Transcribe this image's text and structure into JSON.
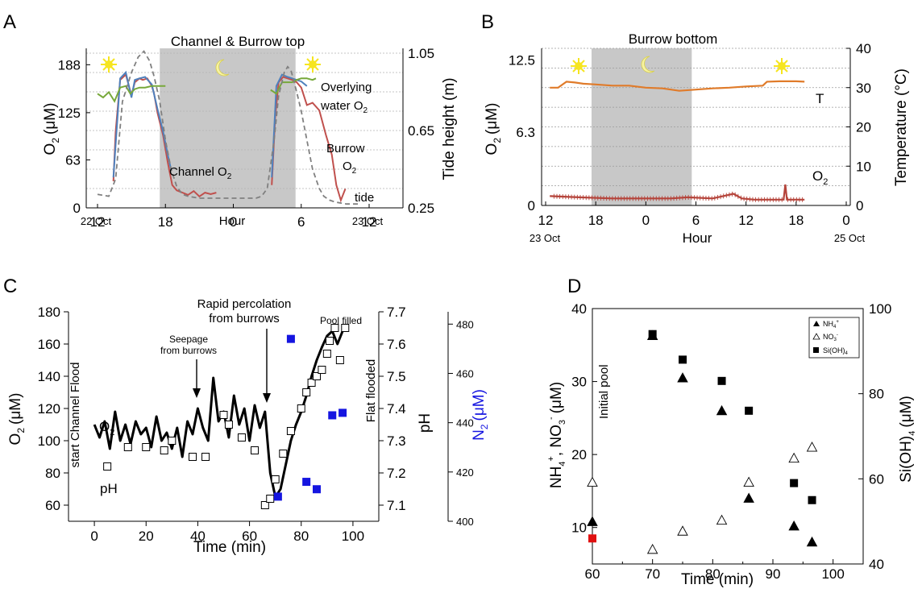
{
  "chart_data": [
    {
      "panel": "A",
      "type": "line",
      "title": "Channel & Burrow top",
      "x_ticks": [
        "12",
        "18",
        "0",
        "6",
        "12"
      ],
      "x_dates": {
        "start": "22 Oct",
        "end": "23 Oct"
      },
      "xlabel": "Hour",
      "ylabel_left": "O₂ (μM)",
      "ylabel_left_main": "O",
      "ylabel_left_sub": "2",
      "ylabel_left_unit": "(μM)",
      "ylim_left": [
        0,
        200
      ],
      "y_ticks_left": [
        "188",
        "125",
        "63",
        "0"
      ],
      "ylabel_right": "Tide height (m)",
      "ylim_right": [
        0.25,
        1.05
      ],
      "y_ticks_right": [
        "1.05",
        "0.65",
        "0.25"
      ],
      "night": {
        "start_hour": 17.5,
        "end_hour": 29.5
      },
      "annotations": {
        "overlying_1": "Overlying",
        "overlying_2": "water O",
        "overlying_sub": "2",
        "burrow_1": "Burrow",
        "burrow_2": "O",
        "burrow_sub": "2",
        "channel": "Channel O",
        "channel_sub": "2",
        "tide": "tide"
      },
      "series": [
        {
          "name": "Burrow O₂",
          "color": "#c0504d",
          "x": [
            13.4,
            13.6,
            14.0,
            14.5,
            15.0,
            15.3,
            15.7,
            16.0,
            16.4,
            16.8,
            17.0,
            17.3,
            17.8,
            18.2,
            18.6,
            19.0,
            19.5,
            20.0,
            20.5,
            21.0,
            21.5,
            22.0,
            22.5,
            27.4,
            27.7,
            28.0,
            28.4,
            28.8,
            29.2,
            29.6,
            30.0,
            30.5,
            31.0,
            31.6,
            32.2,
            32.7,
            33.1,
            33.5,
            33.9
          ],
          "y": [
            35,
            100,
            168,
            175,
            148,
            165,
            170,
            168,
            170,
            160,
            150,
            125,
            95,
            60,
            30,
            23,
            20,
            17,
            22,
            15,
            20,
            18,
            20,
            30,
            120,
            165,
            172,
            170,
            168,
            165,
            158,
            135,
            138,
            128,
            95,
            70,
            30,
            10,
            25
          ]
        },
        {
          "name": "Channel O₂",
          "color": "#4f81bd",
          "x": [
            13.4,
            14.0,
            14.5,
            15.0,
            15.3,
            15.7,
            16.2,
            16.8,
            17.3,
            17.8,
            18.2,
            18.5,
            27.4,
            27.8,
            28.3,
            28.8,
            29.2,
            29.6,
            30.0,
            30.5
          ],
          "y": [
            40,
            170,
            178,
            145,
            168,
            170,
            172,
            162,
            130,
            100,
            70,
            50,
            40,
            160,
            175,
            172,
            170,
            168,
            166,
            160
          ]
        },
        {
          "name": "Overlying water O₂",
          "color": "#77a83a",
          "x": [
            12.0,
            12.5,
            13.0,
            13.5,
            14.0,
            14.5,
            14.9,
            15.3,
            15.7,
            16.2,
            16.8,
            17.3,
            18.0,
            27.3,
            27.8,
            28.3,
            28.8,
            29.2,
            29.6,
            30.0,
            30.5,
            31.0,
            31.3
          ],
          "y": [
            150,
            145,
            152,
            140,
            158,
            160,
            150,
            156,
            158,
            158,
            160,
            160,
            160,
            155,
            150,
            165,
            165,
            165,
            168,
            170,
            170,
            168,
            170
          ]
        },
        {
          "name": "tide",
          "color": "#808080",
          "axis": "right",
          "x": [
            12.0,
            13.0,
            13.6,
            14.2,
            15.0,
            15.6,
            16.1,
            16.6,
            17.0,
            17.5,
            18.0,
            18.5,
            19.0,
            19.5,
            20.0,
            21.0,
            22.0,
            23.0,
            25.0,
            26.0,
            26.5,
            27.0,
            27.6,
            28.0,
            28.5,
            28.8,
            29.1,
            29.6,
            30.0,
            30.5,
            31.0,
            31.6,
            32.0,
            32.5,
            33.0,
            34.0,
            35.0
          ],
          "y": [
            0.32,
            0.31,
            0.4,
            0.8,
            0.95,
            1.03,
            1.06,
            1.01,
            0.93,
            0.8,
            0.6,
            0.45,
            0.36,
            0.32,
            0.31,
            0.3,
            0.3,
            0.3,
            0.3,
            0.3,
            0.31,
            0.35,
            0.6,
            0.83,
            0.95,
            0.98,
            0.96,
            0.85,
            0.75,
            0.6,
            0.45,
            0.35,
            0.31,
            0.29,
            0.28,
            0.27,
            0.27
          ]
        }
      ]
    },
    {
      "panel": "B",
      "type": "line",
      "title": "Burrow bottom",
      "x_ticks": [
        "12",
        "18",
        "0",
        "6",
        "12",
        "18",
        "0"
      ],
      "x_dates": {
        "start": "23 Oct",
        "end": "25 Oct"
      },
      "xlabel": "Hour",
      "ylabel_left": "O₂ (μM)",
      "ylabel_left_main": "O",
      "ylabel_left_sub": "2",
      "ylabel_left_unit": "(μM)",
      "ylim_left": [
        0,
        13.5
      ],
      "y_ticks_left": [
        "12.5",
        "6.3",
        "0"
      ],
      "ylabel_right": "Temperature (°C)",
      "ylim_right": [
        0,
        40
      ],
      "y_ticks_right": [
        "40",
        "30",
        "20",
        "10",
        "0"
      ],
      "night": {
        "start_hour": 17.5,
        "end_hour": 29.5
      },
      "annotations": {
        "t": "T",
        "o2": "O",
        "o2_sub": "2"
      },
      "series": [
        {
          "name": "T",
          "color": "#e07b2a",
          "axis": "right",
          "x": [
            12.5,
            13.5,
            14.5,
            15.5,
            16.5,
            18.0,
            20.0,
            22.0,
            24.0,
            26.0,
            28.0,
            30.0,
            32.0,
            34.0,
            36.0,
            38.0,
            38.5,
            40.0,
            42.0,
            43.0
          ],
          "y": [
            30.0,
            30.0,
            31.5,
            31.3,
            31.0,
            30.8,
            30.5,
            30.5,
            30.0,
            29.8,
            29.2,
            29.5,
            29.8,
            30.0,
            30.3,
            30.5,
            31.5,
            31.6,
            31.6,
            31.5
          ]
        },
        {
          "name": "O₂",
          "color": "#b5443b",
          "axis": "left",
          "x": [
            12.5,
            16.0,
            20.0,
            24.0,
            27.0,
            29.0,
            32.0,
            34.5,
            35.5,
            37.0,
            39.0,
            40.5,
            40.7,
            40.9,
            41.5,
            43.0
          ],
          "y": [
            0.8,
            0.7,
            0.6,
            0.6,
            0.6,
            0.7,
            0.6,
            1.0,
            0.6,
            0.5,
            0.5,
            0.5,
            1.8,
            0.5,
            0.5,
            0.5
          ]
        }
      ]
    },
    {
      "panel": "C",
      "type": "line",
      "xlabel": "Time (min)",
      "xlim": [
        -10,
        110
      ],
      "x_ticks": [
        0,
        20,
        40,
        60,
        80,
        100
      ],
      "ylabel_o2": "O₂ (μM)",
      "ylabel_o2_main": "O",
      "ylabel_o2_sub": "2",
      "ylabel_o2_unit": "(μM)",
      "ylim_o2": [
        50,
        180
      ],
      "y_ticks_o2": [
        60,
        80,
        100,
        120,
        140,
        160,
        180
      ],
      "ylabel_ph": "pH",
      "ylim_ph": [
        7.05,
        7.7
      ],
      "y_ticks_ph": [
        "7.1",
        "7.2",
        "7.3",
        "7.4",
        "7.5",
        "7.6",
        "7.7"
      ],
      "ylabel_n2": "N₂ (μM)",
      "ylabel_n2_main": "N",
      "ylabel_n2_sub": "2",
      "ylabel_n2_unit": "(μM)",
      "ylim_n2": [
        400,
        485
      ],
      "y_ticks_n2": [
        400,
        420,
        440,
        460,
        480
      ],
      "annotations": {
        "start": "start Channel Flood",
        "flat": "Flat flooded",
        "seepage_1": "Seepage",
        "seepage_2": "from burrows",
        "rapid_1": "Rapid percolation",
        "rapid_2": "from burrows",
        "pool": "Pool filled",
        "o2": "O",
        "o2_sub": "2",
        "ph": "pH"
      },
      "series": [
        {
          "name": "O₂",
          "color": "#000000",
          "axis": "o2",
          "x": [
            0,
            2,
            4,
            6,
            8,
            10,
            12,
            14,
            16,
            18,
            20,
            22,
            24,
            26,
            28,
            30,
            32,
            34,
            36,
            38,
            40,
            42,
            44,
            46,
            48,
            50,
            52,
            54,
            56,
            58,
            60,
            62,
            64,
            66,
            68,
            70,
            72,
            74,
            76,
            78,
            80,
            82,
            84,
            86,
            88,
            90,
            92,
            94,
            96
          ],
          "y": [
            110,
            102,
            112,
            95,
            118,
            100,
            110,
            98,
            112,
            104,
            108,
            96,
            115,
            100,
            105,
            95,
            108,
            90,
            112,
            104,
            120,
            108,
            100,
            139,
            112,
            118,
            102,
            128,
            110,
            120,
            100,
            122,
            108,
            118,
            80,
            65,
            70,
            85,
            100,
            110,
            118,
            128,
            140,
            150,
            158,
            165,
            168,
            160,
            168
          ]
        },
        {
          "name": "pH",
          "color": "#000000",
          "axis": "ph",
          "marker": "open-square",
          "x": [
            5,
            13,
            20,
            27,
            30,
            38,
            43,
            50,
            52,
            57,
            62,
            66,
            68,
            70,
            73,
            76,
            80,
            82,
            84,
            86,
            88,
            90,
            91,
            93,
            95,
            97
          ],
          "y": [
            7.22,
            7.28,
            7.28,
            7.27,
            7.3,
            7.25,
            7.25,
            7.38,
            7.35,
            7.31,
            7.27,
            7.1,
            7.12,
            7.18,
            7.26,
            7.33,
            7.4,
            7.45,
            7.48,
            7.5,
            7.52,
            7.57,
            7.61,
            7.65,
            7.55,
            7.65
          ]
        },
        {
          "name": "N₂",
          "color": "#1515e0",
          "axis": "n2",
          "marker": "filled-square",
          "x": [
            71,
            76,
            82,
            86,
            92,
            96
          ],
          "y": [
            410,
            474,
            416,
            413,
            443,
            444
          ]
        }
      ]
    },
    {
      "panel": "D",
      "type": "scatter",
      "xlabel": "Time (min)",
      "xlim": [
        60,
        105
      ],
      "x_ticks": [
        60,
        70,
        80,
        90,
        100
      ],
      "ylabel_left": "NH₄⁺, NO₃⁻ (μM)",
      "ylabel_left_a": "NH",
      "ylabel_left_a_sub": "4",
      "ylabel_left_a_sup": "+",
      "ylabel_left_b": ", NO",
      "ylabel_left_b_sub": "3",
      "ylabel_left_b_sup": "-",
      "ylabel_left_unit": "(μM)",
      "ylim_left": [
        5,
        40
      ],
      "y_ticks_left": [
        10,
        20,
        30,
        40
      ],
      "ylabel_right": "Si(OH)₄ (μM)",
      "ylabel_right_main": "Si(OH)",
      "ylabel_right_sub": "4",
      "ylabel_right_unit": "(μM)",
      "ylim_right": [
        40,
        100
      ],
      "y_ticks_right": [
        40,
        60,
        80,
        100
      ],
      "annotations": {
        "initial": "Initial pool"
      },
      "legend": {
        "placement": "top-right",
        "nh4": "NH",
        "nh4_sub": "4",
        "nh4_sup": "+",
        "no3": "NO",
        "no3_sub": "3",
        "no3_sup": "-",
        "si": "Si(OH)",
        "si_sub": "4"
      },
      "series": [
        {
          "name": "NH₄⁺",
          "marker": "filled-triangle",
          "axis": "left",
          "x": [
            60,
            70,
            75,
            81.5,
            86,
            93.5,
            96.5
          ],
          "y": [
            10.8,
            36.3,
            30.5,
            26.0,
            14.0,
            10.2,
            8.0
          ]
        },
        {
          "name": "NO₃⁻",
          "marker": "open-triangle",
          "axis": "left",
          "x": [
            60,
            70,
            75,
            81.5,
            86,
            93.5,
            96.5
          ],
          "y": [
            16.2,
            7.0,
            9.5,
            11.0,
            16.2,
            19.5,
            21.0
          ]
        },
        {
          "name": "Si(OH)₄",
          "marker": "filled-square",
          "axis": "right",
          "x": [
            60,
            70,
            75,
            81.5,
            86,
            93.5,
            96.5
          ],
          "y": [
            46,
            94,
            88,
            83,
            76,
            59,
            55
          ],
          "colors": [
            "#e01010",
            "#000000",
            "#000000",
            "#000000",
            "#000000",
            "#000000",
            "#000000"
          ]
        }
      ]
    }
  ]
}
